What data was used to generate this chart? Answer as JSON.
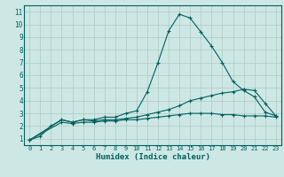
{
  "xlabel": "Humidex (Indice chaleur)",
  "bg_color": "#cde8e4",
  "grid_color": "#b0c8c4",
  "line_color": "#006060",
  "xlim": [
    -0.5,
    23.5
  ],
  "ylim": [
    0.5,
    11.5
  ],
  "xticks": [
    0,
    1,
    2,
    3,
    4,
    5,
    6,
    7,
    8,
    9,
    10,
    11,
    12,
    13,
    14,
    15,
    16,
    17,
    18,
    19,
    20,
    21,
    22,
    23
  ],
  "yticks": [
    1,
    2,
    3,
    4,
    5,
    6,
    7,
    8,
    9,
    10,
    11
  ],
  "line1_x": [
    0,
    1,
    2,
    3,
    4,
    5,
    6,
    7,
    8,
    9,
    10,
    11,
    12,
    13,
    14,
    15,
    16,
    17,
    18,
    19,
    20,
    21,
    22,
    23
  ],
  "line1_y": [
    0.9,
    1.2,
    2.0,
    2.5,
    2.3,
    2.5,
    2.5,
    2.7,
    2.7,
    3.0,
    3.2,
    4.7,
    7.0,
    9.5,
    10.8,
    10.5,
    9.4,
    8.3,
    7.0,
    5.5,
    4.8,
    4.3,
    3.1,
    2.8
  ],
  "line2_x": [
    0,
    3,
    4,
    5,
    6,
    7,
    8,
    9,
    10,
    11,
    12,
    13,
    14,
    15,
    16,
    17,
    18,
    19,
    20,
    21,
    22,
    23
  ],
  "line2_y": [
    0.9,
    2.5,
    2.3,
    2.5,
    2.4,
    2.5,
    2.5,
    2.6,
    2.7,
    2.9,
    3.1,
    3.3,
    3.6,
    4.0,
    4.2,
    4.4,
    4.6,
    4.7,
    4.9,
    4.8,
    3.8,
    2.8
  ],
  "line3_x": [
    0,
    3,
    4,
    5,
    6,
    7,
    8,
    9,
    10,
    11,
    12,
    13,
    14,
    15,
    16,
    17,
    18,
    19,
    20,
    21,
    22,
    23
  ],
  "line3_y": [
    0.9,
    2.3,
    2.2,
    2.3,
    2.3,
    2.4,
    2.4,
    2.5,
    2.5,
    2.6,
    2.7,
    2.8,
    2.9,
    3.0,
    3.0,
    3.0,
    2.9,
    2.9,
    2.8,
    2.8,
    2.8,
    2.7
  ]
}
